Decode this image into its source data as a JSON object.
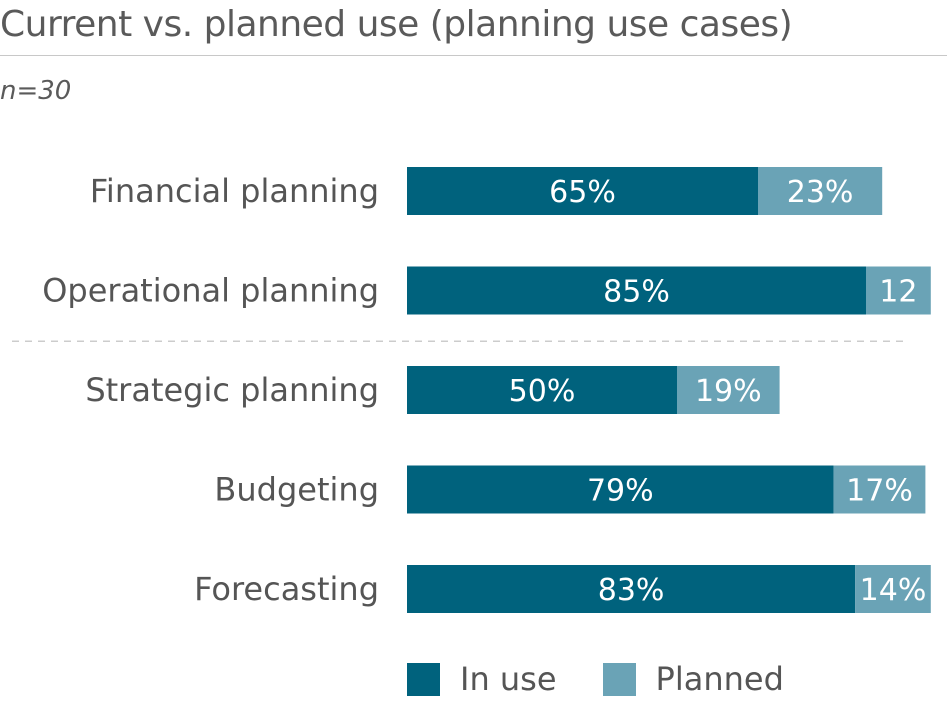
{
  "title": "Current vs. planned use (planning use cases)",
  "sample_size": "n=30",
  "colors": {
    "in_use": "#00627d",
    "planned": "#6aa3b6",
    "divider": "#cccccc"
  },
  "chart_data": {
    "type": "bar",
    "orientation": "horizontal",
    "stacked": true,
    "categories": [
      "Financial planning",
      "Operational planning",
      "Strategic planning",
      "Budgeting",
      "Forecasting"
    ],
    "series": [
      {
        "name": "In use",
        "values": [
          65,
          85,
          50,
          79,
          83
        ],
        "labels": [
          "65%",
          "85%",
          "50%",
          "79%",
          "83%"
        ]
      },
      {
        "name": "Planned",
        "values": [
          23,
          12,
          19,
          17,
          14
        ],
        "labels": [
          "23%",
          "12",
          "19%",
          "17%",
          "14%"
        ]
      }
    ],
    "xlim": [
      0,
      100
    ],
    "grid": false,
    "legend": "bottom",
    "divider_after_category": 1
  },
  "legend": [
    {
      "label": "In use",
      "color": "#00627d"
    },
    {
      "label": "Planned",
      "color": "#6aa3b6"
    }
  ]
}
